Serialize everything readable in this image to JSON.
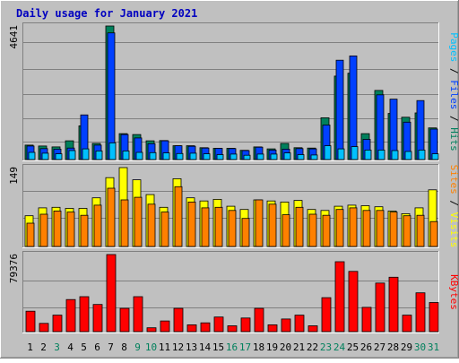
{
  "title": "Daily usage for January 2021",
  "colors": {
    "background": "#c0c0c0",
    "title_text": "#0000c0",
    "hits": "#00805c",
    "files": "#0040ff",
    "pages": "#00c0ff",
    "visits": "#ffff00",
    "sites": "#ff8000",
    "kbytes": "#ff0000",
    "weekday_label": "#000000",
    "weekend_label": "#00805c",
    "gridline": "#808080"
  },
  "chart_data": [
    {
      "type": "bar",
      "title": "Daily usage for January 2021",
      "panel": "top",
      "ylabel_parts": [
        {
          "text": "Pages",
          "color": "#00c0ff"
        },
        {
          "text": " / ",
          "color": "#000000"
        },
        {
          "text": "Files",
          "color": "#0040ff"
        },
        {
          "text": " / ",
          "color": "#000000"
        },
        {
          "text": "Hits",
          "color": "#00805c"
        }
      ],
      "ymax_label": "4641",
      "ylim": [
        0,
        4641
      ],
      "grid": true,
      "categories": [
        "1",
        "2",
        "3",
        "4",
        "5",
        "6",
        "7",
        "8",
        "9",
        "10",
        "11",
        "12",
        "13",
        "14",
        "15",
        "16",
        "17",
        "18",
        "19",
        "20",
        "21",
        "22",
        "23",
        "24",
        "25",
        "26",
        "27",
        "28",
        "29",
        "30",
        "31"
      ],
      "series": [
        {
          "name": "Hits",
          "values": [
            500,
            470,
            440,
            650,
            1170,
            560,
            4641,
            900,
            870,
            650,
            660,
            480,
            480,
            410,
            390,
            390,
            320,
            440,
            370,
            560,
            410,
            400,
            1450,
            2900,
            3000,
            900,
            2400,
            1600,
            1470,
            1620,
            1100
          ]
        },
        {
          "name": "Files",
          "values": [
            470,
            380,
            360,
            400,
            1550,
            500,
            4400,
            870,
            750,
            550,
            650,
            480,
            460,
            400,
            390,
            380,
            310,
            430,
            330,
            360,
            380,
            370,
            1200,
            3450,
            3600,
            700,
            2250,
            2100,
            1300,
            2050,
            1060
          ]
        },
        {
          "name": "Pages",
          "values": [
            250,
            220,
            200,
            310,
            370,
            300,
            580,
            300,
            250,
            240,
            230,
            210,
            220,
            200,
            170,
            190,
            150,
            190,
            190,
            230,
            170,
            160,
            480,
            370,
            450,
            330,
            330,
            310,
            280,
            330,
            200
          ]
        }
      ]
    },
    {
      "type": "bar",
      "panel": "middle",
      "ylabel_parts": [
        {
          "text": "Sites",
          "color": "#ff8000"
        },
        {
          "text": " / ",
          "color": "#000000"
        },
        {
          "text": "Visits",
          "color": "#ffff00"
        }
      ],
      "ymax_label": "149",
      "ylim": [
        0,
        149
      ],
      "grid": true,
      "categories": [
        "1",
        "2",
        "3",
        "4",
        "5",
        "6",
        "7",
        "8",
        "9",
        "10",
        "11",
        "12",
        "13",
        "14",
        "15",
        "16",
        "17",
        "18",
        "19",
        "20",
        "21",
        "22",
        "23",
        "24",
        "25",
        "26",
        "27",
        "28",
        "29",
        "30",
        "31"
      ],
      "series": [
        {
          "name": "Visits",
          "values": [
            58,
            73,
            74,
            72,
            72,
            92,
            130,
            149,
            126,
            98,
            74,
            128,
            92,
            86,
            89,
            76,
            70,
            88,
            86,
            84,
            87,
            70,
            68,
            76,
            78,
            77,
            75,
            67,
            62,
            73,
            107
          ]
        },
        {
          "name": "Sites",
          "values": [
            44,
            61,
            67,
            65,
            59,
            78,
            110,
            88,
            93,
            80,
            65,
            113,
            84,
            73,
            74,
            68,
            53,
            88,
            80,
            60,
            74,
            61,
            59,
            70,
            73,
            68,
            68,
            65,
            58,
            59,
            47
          ]
        }
      ]
    },
    {
      "type": "bar",
      "panel": "bottom",
      "ylabel_parts": [
        {
          "text": "KBytes",
          "color": "#ff0000"
        }
      ],
      "ymax_label": "79376",
      "ylim": [
        0,
        79376
      ],
      "grid": true,
      "categories": [
        "1",
        "2",
        "3",
        "4",
        "5",
        "6",
        "7",
        "8",
        "9",
        "10",
        "11",
        "12",
        "13",
        "14",
        "15",
        "16",
        "17",
        "18",
        "19",
        "20",
        "21",
        "22",
        "23",
        "24",
        "25",
        "26",
        "27",
        "28",
        "29",
        "30",
        "31"
      ],
      "series": [
        {
          "name": "KBytes",
          "values": [
            21000,
            8500,
            17000,
            33000,
            36000,
            28000,
            79376,
            24000,
            36000,
            4000,
            11000,
            24000,
            7000,
            9000,
            15000,
            6000,
            14000,
            24000,
            7000,
            13000,
            17000,
            6000,
            35000,
            72000,
            62000,
            25000,
            50000,
            56000,
            17000,
            40000,
            30000
          ]
        }
      ]
    }
  ],
  "x_labels": [
    {
      "text": "1",
      "weekend": false
    },
    {
      "text": "2",
      "weekend": false
    },
    {
      "text": "3",
      "weekend": true
    },
    {
      "text": "4",
      "weekend": false
    },
    {
      "text": "5",
      "weekend": false
    },
    {
      "text": "6",
      "weekend": false
    },
    {
      "text": "7",
      "weekend": false
    },
    {
      "text": "8",
      "weekend": false
    },
    {
      "text": "9",
      "weekend": true
    },
    {
      "text": "10",
      "weekend": true
    },
    {
      "text": "11",
      "weekend": false
    },
    {
      "text": "12",
      "weekend": false
    },
    {
      "text": "13",
      "weekend": false
    },
    {
      "text": "14",
      "weekend": false
    },
    {
      "text": "15",
      "weekend": false
    },
    {
      "text": "16",
      "weekend": true
    },
    {
      "text": "17",
      "weekend": true
    },
    {
      "text": "18",
      "weekend": false
    },
    {
      "text": "19",
      "weekend": false
    },
    {
      "text": "20",
      "weekend": false
    },
    {
      "text": "21",
      "weekend": false
    },
    {
      "text": "22",
      "weekend": false
    },
    {
      "text": "23",
      "weekend": true
    },
    {
      "text": "24",
      "weekend": true
    },
    {
      "text": "25",
      "weekend": false
    },
    {
      "text": "26",
      "weekend": false
    },
    {
      "text": "27",
      "weekend": false
    },
    {
      "text": "28",
      "weekend": false
    },
    {
      "text": "29",
      "weekend": false
    },
    {
      "text": "30",
      "weekend": true
    },
    {
      "text": "31",
      "weekend": true
    }
  ]
}
